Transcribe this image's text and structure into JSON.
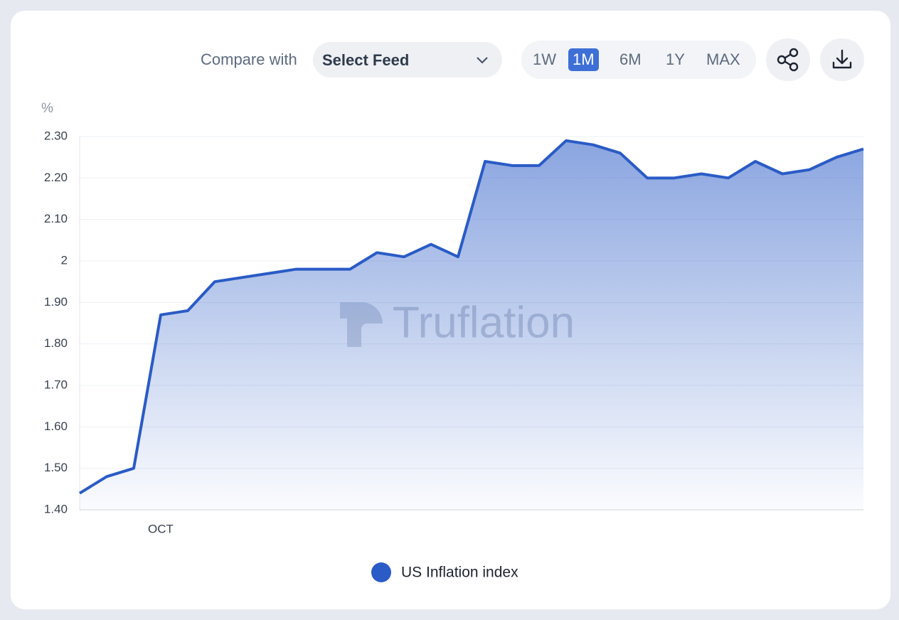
{
  "controls": {
    "compare_label": "Compare with",
    "select_feed": "Select Feed",
    "ranges": [
      "1W",
      "1M",
      "6M",
      "1Y",
      "MAX"
    ],
    "active_range": 1
  },
  "chart_data": {
    "type": "line",
    "y_label": "%",
    "watermark": "Truflation",
    "categories": [
      null,
      null,
      null,
      "OCT",
      null,
      null,
      null,
      null,
      null,
      null,
      null,
      null,
      null,
      null,
      null,
      null,
      null,
      null,
      null,
      null,
      null,
      null,
      null,
      null,
      null,
      null,
      null,
      null,
      null,
      null
    ],
    "series": [
      {
        "name": "US Inflation index",
        "color": "#2a5bc6",
        "values": [
          1.44,
          1.48,
          1.5,
          1.87,
          1.88,
          1.95,
          1.96,
          1.97,
          1.98,
          1.98,
          1.98,
          2.02,
          2.01,
          2.04,
          2.01,
          2.24,
          2.23,
          2.23,
          2.29,
          2.28,
          2.26,
          2.2,
          2.2,
          2.21,
          2.2,
          2.24,
          2.21,
          2.22,
          2.25,
          2.27
        ]
      }
    ],
    "ylim": [
      1.4,
      2.3
    ],
    "yticks": [
      {
        "value": 1.4,
        "label": "1.40"
      },
      {
        "value": 1.5,
        "label": "1.50"
      },
      {
        "value": 1.6,
        "label": "1.60"
      },
      {
        "value": 1.7,
        "label": "1.70"
      },
      {
        "value": 1.8,
        "label": "1.80"
      },
      {
        "value": 1.9,
        "label": "1.90"
      },
      2,
      {
        "value": 2.1,
        "label": "2.10"
      },
      {
        "value": 2.2,
        "label": "2.20"
      },
      {
        "value": 2.3,
        "label": "2.30"
      }
    ],
    "grid": true,
    "legend": "bottom"
  }
}
